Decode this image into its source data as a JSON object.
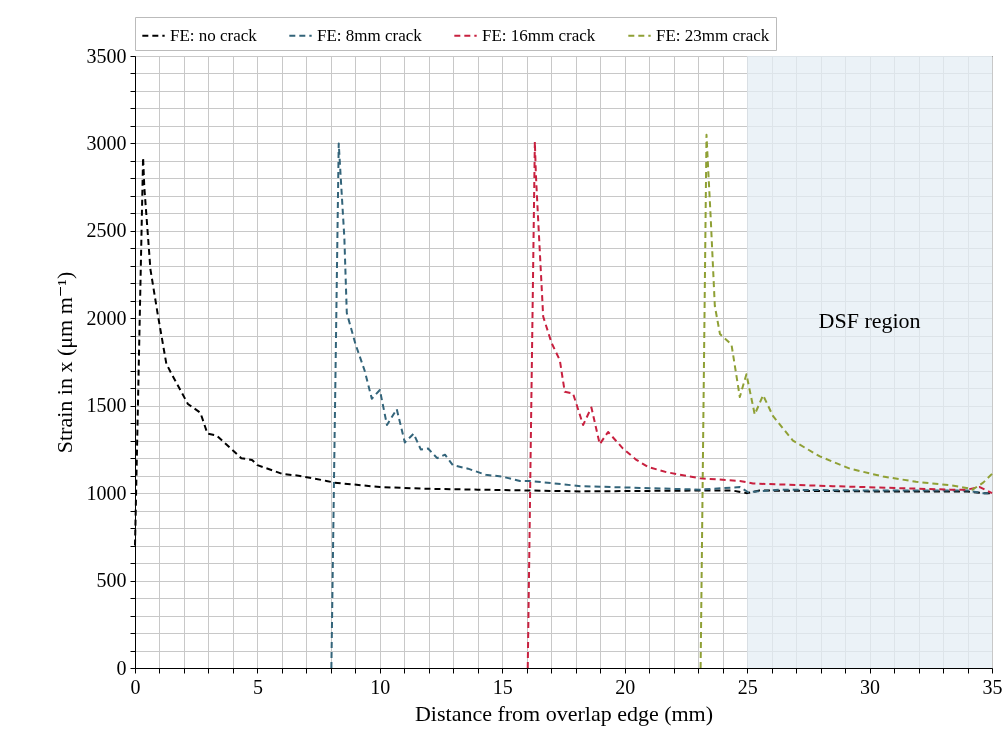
{
  "chart_data": {
    "type": "line",
    "xlabel": "Distance from overlap edge (mm)",
    "ylabel": "Strain in x (μm m⁻¹)",
    "xlim": [
      0,
      35
    ],
    "ylim": [
      0,
      3500
    ],
    "xticks": [
      0,
      {
        "value": 1,
        "label": null
      },
      {
        "value": 2,
        "label": null
      },
      {
        "value": 3,
        "label": null
      },
      {
        "value": 4,
        "label": null
      },
      5,
      {
        "value": 6,
        "label": null
      },
      {
        "value": 7,
        "label": null
      },
      {
        "value": 8,
        "label": null
      },
      {
        "value": 9,
        "label": null
      },
      10,
      {
        "value": 11,
        "label": null
      },
      {
        "value": 12,
        "label": null
      },
      {
        "value": 13,
        "label": null
      },
      {
        "value": 14,
        "label": null
      },
      15,
      {
        "value": 16,
        "label": null
      },
      {
        "value": 17,
        "label": null
      },
      {
        "value": 18,
        "label": null
      },
      {
        "value": 19,
        "label": null
      },
      20,
      {
        "value": 21,
        "label": null
      },
      {
        "value": 22,
        "label": null
      },
      {
        "value": 23,
        "label": null
      },
      {
        "value": 24,
        "label": null
      },
      25,
      {
        "value": 26,
        "label": null
      },
      {
        "value": 27,
        "label": null
      },
      {
        "value": 28,
        "label": null
      },
      {
        "value": 29,
        "label": null
      },
      30,
      {
        "value": 31,
        "label": null
      },
      {
        "value": 32,
        "label": null
      },
      {
        "value": 33,
        "label": null
      },
      {
        "value": 34,
        "label": null
      },
      35
    ],
    "yticks": [
      0,
      {
        "value": 100,
        "label": null
      },
      {
        "value": 200,
        "label": null
      },
      {
        "value": 300,
        "label": null
      },
      {
        "value": 400,
        "label": null
      },
      500,
      {
        "value": 600,
        "label": null
      },
      {
        "value": 700,
        "label": null
      },
      {
        "value": 800,
        "label": null
      },
      {
        "value": 900,
        "label": null
      },
      1000,
      {
        "value": 1100,
        "label": null
      },
      {
        "value": 1200,
        "label": null
      },
      {
        "value": 1300,
        "label": null
      },
      {
        "value": 1400,
        "label": null
      },
      1500,
      {
        "value": 1600,
        "label": null
      },
      {
        "value": 1700,
        "label": null
      },
      {
        "value": 1800,
        "label": null
      },
      {
        "value": 1900,
        "label": null
      },
      2000,
      {
        "value": 2100,
        "label": null
      },
      {
        "value": 2200,
        "label": null
      },
      {
        "value": 2300,
        "label": null
      },
      {
        "value": 2400,
        "label": null
      },
      2500,
      {
        "value": 2600,
        "label": null
      },
      {
        "value": 2700,
        "label": null
      },
      {
        "value": 2800,
        "label": null
      },
      {
        "value": 2900,
        "label": null
      },
      3000,
      {
        "value": 3100,
        "label": null
      },
      {
        "value": 3200,
        "label": null
      },
      {
        "value": 3300,
        "label": null
      },
      {
        "value": 3400,
        "label": null
      },
      3500
    ],
    "grid": true,
    "legend": "top",
    "line_style": "dashed",
    "bands": [
      {
        "axis": "x",
        "from": 25,
        "to": 35,
        "label": "DSF region",
        "color": "#e4edf4"
      }
    ],
    "series": [
      {
        "name": "FE: no crack",
        "color": "#000000",
        "x": [
          0,
          0.33,
          0.38,
          0.63,
          0.92,
          1.28,
          1.5,
          2.16,
          2.67,
          2.96,
          3.33,
          4.34,
          4.78,
          5.0,
          6.02,
          6.68,
          7.82,
          8.13,
          10.0,
          11.9,
          14.0,
          18.2,
          23.1,
          24.4,
          25.0,
          25.5,
          30.0,
          34.0,
          34.6,
          35
        ],
        "values": [
          700,
          2920,
          2750,
          2280,
          2030,
          1740,
          1680,
          1510,
          1460,
          1340,
          1330,
          1200,
          1190,
          1160,
          1110,
          1100,
          1070,
          1060,
          1035,
          1025,
          1020,
          1010,
          1015,
          1015,
          1000,
          1015,
          1010,
          1010,
          1000,
          1000
        ]
      },
      {
        "name": "FE: 8mm crack",
        "color": "#33647a",
        "x": [
          8.02,
          8.32,
          8.4,
          8.55,
          8.65,
          9.01,
          9.38,
          9.67,
          10.0,
          10.29,
          10.69,
          11.02,
          11.38,
          11.67,
          11.97,
          12.34,
          12.66,
          12.98,
          13.6,
          14.33,
          14.98,
          15.72,
          16.1,
          18.2,
          23.07,
          24.7,
          25.04,
          26.3,
          30.0,
          34.0,
          34.6,
          35
        ],
        "values": [
          0,
          3000,
          2810,
          2460,
          2030,
          1850,
          1700,
          1540,
          1590,
          1390,
          1480,
          1290,
          1340,
          1250,
          1255,
          1200,
          1220,
          1160,
          1140,
          1105,
          1095,
          1070,
          1070,
          1040,
          1020,
          1035,
          1005,
          1020,
          1015,
          1015,
          1000,
          1000
        ]
      },
      {
        "name": "FE: 16mm crack",
        "color": "#c8203f",
        "x": [
          16.04,
          16.33,
          16.37,
          16.43,
          16.67,
          17.01,
          17.35,
          17.55,
          17.89,
          18.3,
          18.64,
          18.98,
          19.32,
          19.93,
          20.48,
          20.95,
          21.7,
          23.07,
          24.7,
          25.24,
          28.5,
          33.3,
          33.96,
          34.5,
          35
        ],
        "values": [
          0,
          3010,
          2830,
          2660,
          2010,
          1860,
          1760,
          1580,
          1570,
          1390,
          1490,
          1280,
          1350,
          1255,
          1190,
          1150,
          1120,
          1085,
          1070,
          1055,
          1040,
          1020,
          1020,
          1035,
          1000
        ]
      },
      {
        "name": "FE: 23mm crack",
        "color": "#8fa035",
        "x": [
          23.1,
          23.34,
          23.41,
          23.51,
          23.68,
          23.89,
          24.36,
          24.7,
          24.97,
          25.31,
          25.65,
          26.06,
          26.87,
          27.97,
          29.2,
          30.55,
          31.9,
          33.3,
          33.96,
          34.2,
          34.64,
          35
        ],
        "values": [
          0,
          3050,
          2850,
          2580,
          2070,
          1910,
          1850,
          1550,
          1680,
          1450,
          1560,
          1440,
          1300,
          1210,
          1140,
          1095,
          1065,
          1045,
          1030,
          1020,
          1060,
          1110
        ]
      }
    ]
  }
}
